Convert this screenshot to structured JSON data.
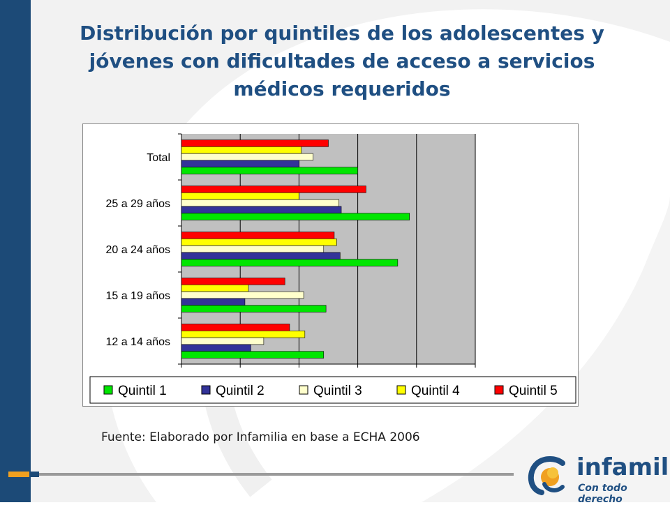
{
  "slide": {
    "title": "Distribución por quintiles de los adolescentes y jóvenes con dificultades de acceso a servicios médicos requeridos",
    "source": "Fuente: Elaborado por Infamilia en base a ECHA 2006",
    "logo_name": "infamilia",
    "logo_tagline": "Con todo derecho"
  },
  "colors": {
    "band": "#1c4a77",
    "title": "#1f4f82",
    "plot_bg": "#c0c0c0",
    "accent_orange": "#f0a020"
  },
  "chart_data": {
    "type": "bar",
    "orientation": "horizontal",
    "title": "",
    "xlabel": "",
    "ylabel": "",
    "categories": [
      "Total",
      "25 a 29 años",
      "20 a 24 años",
      "15 a 19 años",
      "12 a 14 años"
    ],
    "series": [
      {
        "name": "Quintil 1",
        "color": "#00e600",
        "values": [
          30,
          38.8,
          36.8,
          24.6,
          24.2
        ]
      },
      {
        "name": "Quintil 2",
        "color": "#333399",
        "values": [
          20,
          27.2,
          27,
          10.8,
          11.8
        ]
      },
      {
        "name": "Quintil 3",
        "color": "#ffffcc",
        "values": [
          22.4,
          26.8,
          24.2,
          20.8,
          14
        ]
      },
      {
        "name": "Quintil 4",
        "color": "#ffff00",
        "values": [
          20.4,
          20,
          26.4,
          11.4,
          21
        ]
      },
      {
        "name": "Quintil 5",
        "color": "#ff0000",
        "values": [
          25,
          31.4,
          26,
          17.6,
          18.4
        ]
      }
    ],
    "xlim": [
      0,
      50
    ],
    "x_gridlines": [
      10,
      20,
      30,
      40,
      50
    ],
    "x_tick_labels": "none",
    "grid": true,
    "legend_position": "bottom"
  }
}
